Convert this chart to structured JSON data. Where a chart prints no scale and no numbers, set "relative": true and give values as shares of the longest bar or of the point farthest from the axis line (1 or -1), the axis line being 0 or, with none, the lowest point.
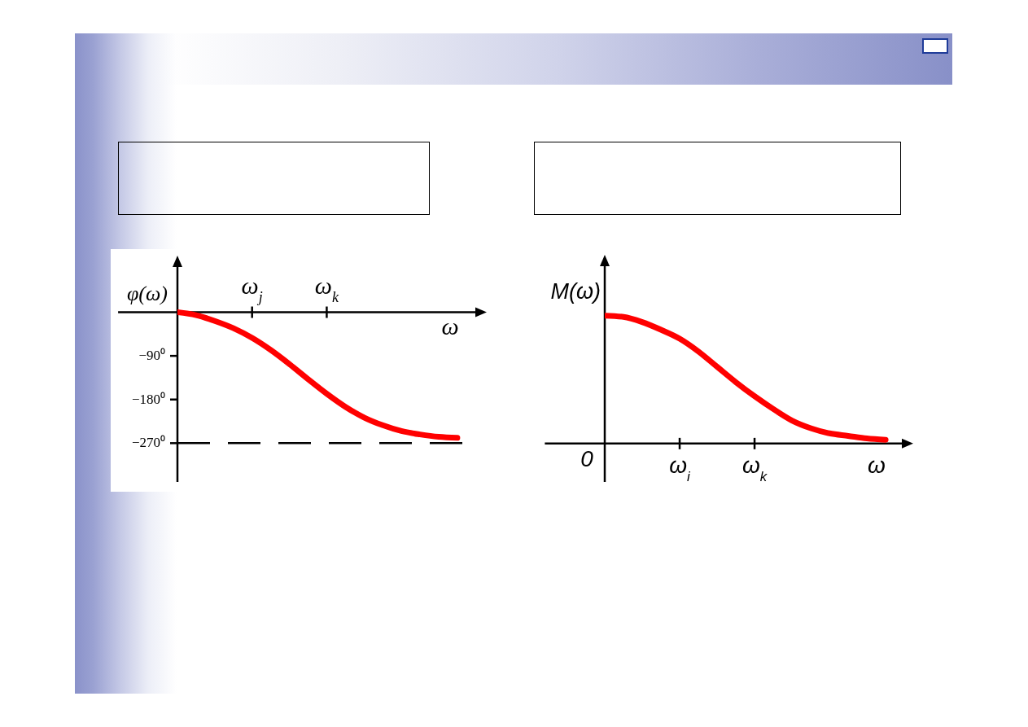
{
  "chart_data": [
    {
      "type": "line",
      "xlabel": "ω",
      "ylabel": "φ(ω)",
      "categories": [
        null,
        null,
        null,
        null,
        "ω$_{j}$",
        null,
        null,
        null,
        "ω$_{k}$",
        null,
        null,
        null,
        null,
        null,
        null,
        null
      ],
      "series": [
        {
          "color": "#ff0000",
          "values": [
            0,
            -6,
            -18,
            -33,
            -53,
            -78,
            -107,
            -138,
            -168,
            -195,
            -217,
            -233,
            -245,
            -252,
            -257,
            -259
          ]
        }
      ],
      "ylim": [
        -350,
        110
      ],
      "yticks": [
        {
          "value": -90,
          "label": "−90⁰"
        },
        {
          "value": -180,
          "label": "−180⁰"
        },
        {
          "value": -270,
          "label": "−270⁰"
        }
      ],
      "ref_lines": [
        {
          "axis": "y",
          "value": -270,
          "color": "#000000",
          "line_style": "dashed"
        }
      ],
      "marker": "none"
    },
    {
      "type": "line",
      "xlabel": "ω",
      "ylabel": "M(ω)",
      "relative": true,
      "categories": [
        null,
        null,
        null,
        null,
        "ω$_{i}$",
        null,
        null,
        null,
        "ω$_{k}$",
        null,
        null,
        null,
        null,
        null,
        null,
        null
      ],
      "series": [
        {
          "color": "#ff0000",
          "values": [
            1,
            0.99,
            0.95,
            0.89,
            0.82,
            0.72,
            0.6,
            0.48,
            0.37,
            0.27,
            0.18,
            0.12,
            0.08,
            0.06,
            0.04,
            0.03
          ]
        }
      ],
      "marker": "none",
      "annotations": [
        "0"
      ]
    }
  ]
}
